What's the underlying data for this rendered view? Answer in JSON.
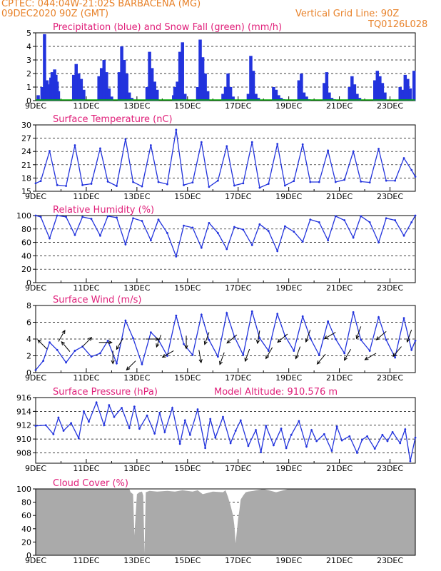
{
  "header": {
    "line1": "CPTEC:   044:04W-21:02S  BARBACENA (MG)",
    "line2": "09DEC2020 90Z (GMT)",
    "grid_note": "Vertical Grid Line: 90Z",
    "code": "TQ0126L028"
  },
  "colors": {
    "header": "#e8822a",
    "panel_title": "#e0207a",
    "line": "#2233dd",
    "bar": "#2233dd",
    "snow": "#00aa00",
    "cloud": "#aaaaaa",
    "arrow": "#000000"
  },
  "chart_data": [
    {
      "id": "precip",
      "type": "bar",
      "title": "Precipitation (blue) and Snow Fall (green) (mm/h)",
      "ylim": [
        0,
        5
      ],
      "yticks": [
        0,
        1,
        2,
        3,
        4,
        5
      ],
      "x_labels": [
        "9DEC",
        "11DEC",
        "13DEC",
        "15DEC",
        "17DEC",
        "19DEC",
        "21DEC",
        "23DEC"
      ],
      "grid": "dashed",
      "series": [
        {
          "name": "Precipitation",
          "days": [
            0.1,
            0.25,
            0.35,
            0.45,
            0.55,
            0.6,
            0.65,
            0.7,
            0.75,
            0.8,
            0.85,
            0.9,
            1.5,
            1.6,
            1.7,
            1.8,
            1.9,
            2.5,
            2.6,
            2.7,
            2.8,
            2.9,
            3.0,
            3.3,
            3.4,
            3.5,
            3.6,
            3.7,
            3.8,
            4.4,
            4.5,
            4.6,
            4.7,
            4.8,
            5.45,
            5.5,
            5.6,
            5.7,
            5.8,
            5.9,
            6.4,
            6.5,
            6.6,
            6.7,
            6.8,
            7.4,
            7.5,
            7.6,
            7.7,
            7.8,
            8.4,
            8.5,
            8.6,
            8.7,
            8.8,
            9.4,
            9.5,
            9.6,
            9.7,
            9.8,
            10.4,
            10.5,
            10.6,
            10.7,
            10.8,
            11.4,
            11.5,
            11.6,
            11.7,
            11.8,
            12.4,
            12.5,
            12.6,
            12.7,
            12.8,
            13.4,
            13.5,
            13.6,
            13.7,
            13.8,
            14.4,
            14.5,
            14.6,
            14.7,
            14.8,
            14.95
          ],
          "values": [
            0.4,
            1.0,
            4.9,
            1.5,
            1.2,
            1.7,
            2.1,
            1.6,
            2.3,
            1.9,
            1.4,
            0.7,
            1.9,
            2.7,
            2.0,
            1.6,
            0.8,
            1.8,
            2.4,
            3.0,
            2.1,
            0.9,
            0.3,
            2.1,
            4.0,
            3.0,
            2.0,
            0.6,
            0.2,
            1.0,
            3.6,
            2.4,
            1.4,
            0.8,
            0.4,
            1.0,
            1.4,
            3.6,
            4.3,
            0.5,
            1.0,
            4.5,
            3.2,
            2.0,
            0.7,
            0.5,
            1.0,
            2.0,
            1.0,
            0.3,
            0.5,
            3.3,
            2.2,
            0.5,
            0.2,
            1.0,
            0.8,
            0.4,
            0.2,
            0.1,
            1.5,
            2.0,
            0.6,
            0.3,
            0.1,
            1.3,
            2.1,
            0.6,
            0.2,
            0.1,
            1.0,
            1.8,
            1.2,
            0.5,
            0.2,
            1.5,
            2.2,
            1.8,
            1.3,
            0.6,
            1.0,
            0.8,
            1.9,
            1.6,
            0.9,
            2.2
          ]
        },
        {
          "name": "Snow Fall",
          "values": [
            0
          ]
        }
      ]
    },
    {
      "id": "temp",
      "type": "line",
      "title": "Surface Temperature (nC)",
      "ylim": [
        15,
        30
      ],
      "yticks": [
        15,
        18,
        21,
        24,
        27,
        30
      ],
      "x_labels": [
        "9DEC",
        "11DEC",
        "13DEC",
        "15DEC",
        "17DEC",
        "19DEC",
        "21DEC",
        "23DEC"
      ],
      "series": [
        {
          "name": "Temperature",
          "days": [
            0,
            0.2,
            0.55,
            0.85,
            1.2,
            1.55,
            1.85,
            2.2,
            2.55,
            2.85,
            3.2,
            3.55,
            3.85,
            4.2,
            4.55,
            4.85,
            5.2,
            5.55,
            5.85,
            6.2,
            6.55,
            6.85,
            7.2,
            7.55,
            7.85,
            8.2,
            8.55,
            8.85,
            9.2,
            9.55,
            9.85,
            10.2,
            10.55,
            10.85,
            11.2,
            11.55,
            11.85,
            12.2,
            12.55,
            12.85,
            13.2,
            13.55,
            13.85,
            14.2,
            14.55,
            14.85,
            15
          ],
          "values": [
            16.8,
            17.3,
            24.1,
            16.4,
            16.2,
            25.4,
            16.4,
            16.7,
            24.7,
            17.2,
            16.2,
            26.8,
            17.1,
            16.1,
            25.4,
            17.1,
            16.6,
            28.9,
            16.4,
            17.0,
            26.1,
            16.0,
            17.4,
            25.2,
            16.3,
            16.8,
            26.1,
            15.8,
            16.7,
            25.7,
            16.3,
            17.3,
            25.6,
            17.1,
            17.1,
            24.2,
            17.1,
            17.6,
            24.0,
            17.2,
            17.0,
            24.6,
            17.4,
            17.4,
            22.5,
            19.8,
            18.3
          ]
        }
      ]
    },
    {
      "id": "rh",
      "type": "line",
      "title": "Relative Humidity (%)",
      "ylim": [
        0,
        100
      ],
      "yticks": [
        0,
        20,
        40,
        60,
        80,
        100
      ],
      "x_labels": [
        "9DEC",
        "11DEC",
        "13DEC",
        "15DEC",
        "17DEC",
        "19DEC",
        "21DEC",
        "23DEC"
      ],
      "series": [
        {
          "name": "Relative Humidity",
          "days": [
            0,
            0.2,
            0.55,
            0.85,
            1.2,
            1.55,
            1.85,
            2.2,
            2.55,
            2.85,
            3.2,
            3.55,
            3.85,
            4.2,
            4.55,
            4.85,
            5.2,
            5.55,
            5.85,
            6.2,
            6.55,
            6.85,
            7.2,
            7.55,
            7.85,
            8.2,
            8.55,
            8.85,
            9.2,
            9.55,
            9.85,
            10.2,
            10.55,
            10.85,
            11.2,
            11.55,
            11.85,
            12.2,
            12.55,
            12.85,
            13.2,
            13.55,
            13.85,
            14.2,
            14.55,
            14.85,
            15
          ],
          "values": [
            100,
            98,
            66,
            100,
            98,
            71,
            98,
            95,
            70,
            99,
            97,
            57,
            96,
            92,
            63,
            94,
            74,
            39,
            85,
            82,
            52,
            89,
            74,
            50,
            83,
            79,
            56,
            87,
            77,
            47,
            84,
            76,
            61,
            94,
            90,
            63,
            99,
            93,
            67,
            99,
            90,
            60,
            96,
            93,
            70,
            90,
            100
          ]
        }
      ]
    },
    {
      "id": "wind",
      "type": "line",
      "title": "Surface Wind (m/s)",
      "ylim": [
        0,
        8
      ],
      "yticks": [
        0,
        2,
        4,
        6,
        8
      ],
      "x_labels": [
        "9DEC",
        "11DEC",
        "13DEC",
        "15DEC",
        "17DEC",
        "19DEC",
        "21DEC",
        "23DEC"
      ],
      "series": [
        {
          "name": "Wind Speed",
          "days": [
            0,
            0.3,
            0.55,
            0.85,
            1.2,
            1.55,
            1.85,
            2.2,
            2.55,
            2.85,
            3.2,
            3.55,
            3.85,
            4.2,
            4.55,
            4.85,
            5.2,
            5.55,
            5.85,
            6.2,
            6.55,
            6.85,
            7.2,
            7.55,
            7.85,
            8.2,
            8.55,
            8.85,
            9.2,
            9.55,
            9.85,
            10.2,
            10.55,
            10.85,
            11.2,
            11.55,
            11.85,
            12.2,
            12.55,
            12.85,
            13.2,
            13.55,
            13.85,
            14.2,
            14.55,
            14.85,
            15
          ],
          "values": [
            0.3,
            1.4,
            3.6,
            2.7,
            1.2,
            2.6,
            3.1,
            1.9,
            2.3,
            3.8,
            1.1,
            6.2,
            4.1,
            1.0,
            4.8,
            3.9,
            2.0,
            6.8,
            3.4,
            2.1,
            6.9,
            3.9,
            1.9,
            7.1,
            4.3,
            2.1,
            7.3,
            4.1,
            2.6,
            7.0,
            4.4,
            2.6,
            6.7,
            4.1,
            2.1,
            6.1,
            4.0,
            2.3,
            7.2,
            3.9,
            2.6,
            6.6,
            3.9,
            1.8,
            6.5,
            2.7,
            3.8
          ]
        }
      ],
      "arrows": {
        "days": [
          0.45,
          0.9,
          1.35,
          1.85,
          2.5,
          3.05,
          3.45,
          3.95,
          4.35,
          4.95,
          5.45,
          5.95,
          6.45,
          6.85,
          7.45,
          7.95,
          8.45,
          8.85,
          9.35,
          9.95,
          10.45,
          10.85,
          11.45,
          11.85,
          12.45,
          12.85,
          13.45,
          13.85,
          14.45,
          14.85
        ],
        "speeds": [
          2.8,
          3.7,
          2.5,
          3.1,
          3.6,
          2.6,
          4.1,
          1.4,
          4.0,
          4.5,
          2.6,
          4.4,
          2.7,
          4.8,
          2.4,
          4.5,
          2.8,
          5.0,
          3.0,
          4.6,
          3.1,
          5.1,
          2.2,
          4.8,
          2.8,
          5.5,
          2.3,
          4.9,
          3.1,
          5.1
        ],
        "headings_deg": [
          315,
          30,
          320,
          45,
          90,
          180,
          210,
          225,
          90,
          200,
          240,
          180,
          170,
          200,
          200,
          230,
          200,
          190,
          210,
          230,
          200,
          200,
          220,
          240,
          210,
          200,
          240,
          230,
          220,
          200
        ]
      }
    },
    {
      "id": "pressure",
      "type": "line",
      "title": "Surface Pressure (hPa)",
      "note": "Model Altitude: 910.576 m",
      "ylim": [
        906.5,
        916
      ],
      "yticks": [
        908,
        910,
        912,
        914,
        916
      ],
      "x_labels": [
        "9DEC",
        "11DEC",
        "13DEC",
        "15DEC",
        "17DEC",
        "19DEC",
        "21DEC",
        "23DEC"
      ],
      "series": [
        {
          "name": "Surface Pressure",
          "days": [
            0,
            0.4,
            0.7,
            0.9,
            1.1,
            1.4,
            1.7,
            1.9,
            2.1,
            2.4,
            2.7,
            2.9,
            3.1,
            3.4,
            3.7,
            3.9,
            4.1,
            4.4,
            4.7,
            4.9,
            5.1,
            5.4,
            5.7,
            5.9,
            6.1,
            6.4,
            6.7,
            6.9,
            7.1,
            7.4,
            7.7,
            7.9,
            8.1,
            8.4,
            8.7,
            8.9,
            9.1,
            9.4,
            9.7,
            9.9,
            10.1,
            10.4,
            10.7,
            10.9,
            11.1,
            11.4,
            11.7,
            11.9,
            12.1,
            12.4,
            12.7,
            12.9,
            13.1,
            13.4,
            13.7,
            13.9,
            14.1,
            14.4,
            14.6,
            14.8,
            15
          ],
          "values": [
            911.9,
            912.0,
            910.7,
            913.1,
            911.2,
            912.3,
            910.1,
            914.0,
            912.5,
            915.3,
            912.0,
            914.9,
            913.2,
            914.5,
            911.6,
            914.7,
            911.5,
            913.4,
            910.8,
            913.8,
            911.0,
            914.5,
            909.3,
            912.7,
            910.6,
            914.3,
            908.7,
            912.9,
            910.2,
            913.2,
            909.4,
            911.2,
            912.7,
            909.0,
            911.3,
            908.1,
            911.9,
            909.1,
            911.5,
            908.7,
            910.6,
            912.6,
            908.9,
            911.3,
            909.7,
            910.7,
            908.3,
            911.8,
            909.8,
            910.4,
            908.0,
            909.9,
            910.4,
            908.6,
            910.6,
            909.7,
            911.0,
            909.4,
            911.4,
            906.8,
            910.2
          ]
        }
      ]
    },
    {
      "id": "cloud",
      "type": "area",
      "title": "Cloud Cover (%)",
      "ylim": [
        0,
        100
      ],
      "yticks": [
        0,
        20,
        40,
        60,
        80,
        100
      ],
      "x_labels": [
        "9DEC",
        "11DEC",
        "13DEC",
        "15DEC",
        "17DEC",
        "19DEC",
        "21DEC",
        "23DEC"
      ],
      "series": [
        {
          "name": "Cloud Cover",
          "days": [
            0,
            3.7,
            3.75,
            3.85,
            3.9,
            4.0,
            4.1,
            4.2,
            4.25,
            4.3,
            4.35,
            4.5,
            4.8,
            5.2,
            5.5,
            5.8,
            6.2,
            6.4,
            6.6,
            7.0,
            7.4,
            7.5,
            7.6,
            7.7,
            7.8,
            7.85,
            7.9,
            8.0,
            8.05,
            8.1,
            8.2,
            8.3,
            8.4,
            8.6,
            9.0,
            9.5,
            10.0,
            11.0,
            12.0,
            13.0,
            14.0,
            15.0
          ],
          "values": [
            100,
            100,
            95,
            92,
            30,
            92,
            95,
            96,
            90,
            3,
            95,
            97,
            96,
            97,
            96,
            98,
            96,
            98,
            92,
            96,
            95,
            98,
            88,
            75,
            60,
            45,
            18,
            55,
            68,
            84,
            90,
            95,
            96,
            97,
            100,
            95,
            100,
            100,
            100,
            100,
            100,
            100
          ]
        }
      ]
    }
  ]
}
